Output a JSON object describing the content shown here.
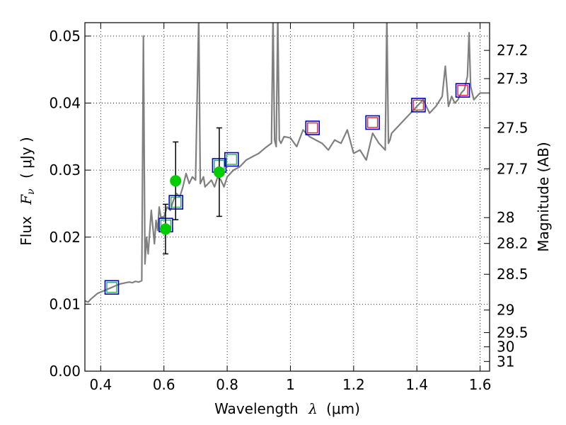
{
  "chart_data": {
    "type": "line",
    "xlabel": "Wavelength",
    "xlabel_symbol": "λ",
    "xlabel_unit": "(μm)",
    "ylabel": "Flux",
    "ylabel_symbol": "F",
    "ylabel_subscript": "ν",
    "ylabel_unit": "( μJy )",
    "y2label": "Magnitude (AB)",
    "xlim": [
      0.35,
      1.63
    ],
    "ylim": [
      0.0,
      0.052
    ],
    "x_ticks": [
      0.4,
      0.6,
      0.8,
      1.0,
      1.2,
      1.4,
      1.6
    ],
    "x_tick_labels": [
      "0.4",
      "0.6",
      "0.8",
      "1",
      "1.2",
      "1.4",
      "1.6"
    ],
    "y_ticks": [
      0.0,
      0.01,
      0.02,
      0.03,
      0.04,
      0.05
    ],
    "y_tick_labels": [
      "0.00",
      "0.01",
      "0.02",
      "0.03",
      "0.04",
      "0.05"
    ],
    "mag_ticks": [
      27.2,
      27.3,
      27.5,
      27.7,
      28,
      28.2,
      28.5,
      29,
      29.5,
      30,
      31
    ],
    "mag_tick_labels": [
      "27.2",
      "27.3",
      "27.5",
      "27.7",
      "28",
      "28.2",
      "28.5",
      "29",
      "29.5",
      "30",
      "31"
    ],
    "grid": true,
    "colors": {
      "spectrum": "#808080",
      "observed": "#00cc00",
      "model_square": "#0000cc",
      "inner_green": "#33aa55",
      "inner_red": "#dd2233",
      "errorbar": "#000000"
    },
    "series": [
      {
        "name": "model spectrum",
        "kind": "line",
        "x": [
          0.35,
          0.36,
          0.37,
          0.38,
          0.39,
          0.4,
          0.41,
          0.42,
          0.43,
          0.44,
          0.45,
          0.46,
          0.47,
          0.48,
          0.49,
          0.5,
          0.51,
          0.52,
          0.53,
          0.535,
          0.54,
          0.545,
          0.55,
          0.56,
          0.57,
          0.575,
          0.58,
          0.585,
          0.59,
          0.6,
          0.61,
          0.62,
          0.63,
          0.64,
          0.65,
          0.66,
          0.67,
          0.68,
          0.69,
          0.7,
          0.71,
          0.715,
          0.72,
          0.725,
          0.73,
          0.74,
          0.75,
          0.76,
          0.77,
          0.78,
          0.79,
          0.8,
          0.82,
          0.84,
          0.86,
          0.88,
          0.9,
          0.92,
          0.94,
          0.945,
          0.95,
          0.955,
          0.96,
          0.965,
          0.97,
          0.98,
          1.0,
          1.02,
          1.04,
          1.06,
          1.08,
          1.1,
          1.12,
          1.14,
          1.16,
          1.18,
          1.2,
          1.22,
          1.24,
          1.26,
          1.28,
          1.3,
          1.305,
          1.31,
          1.315,
          1.32,
          1.34,
          1.36,
          1.38,
          1.4,
          1.42,
          1.44,
          1.46,
          1.48,
          1.49,
          1.5,
          1.51,
          1.52,
          1.53,
          1.54,
          1.55,
          1.56,
          1.565,
          1.57,
          1.58,
          1.6,
          1.63
        ],
        "y": [
          0.0105,
          0.0103,
          0.0108,
          0.0112,
          0.0116,
          0.0118,
          0.012,
          0.0122,
          0.0124,
          0.0126,
          0.0128,
          0.013,
          0.0131,
          0.0132,
          0.0133,
          0.0132,
          0.0134,
          0.0133,
          0.0135,
          0.05,
          0.016,
          0.02,
          0.0175,
          0.024,
          0.019,
          0.0225,
          0.021,
          0.0245,
          0.023,
          0.023,
          0.0245,
          0.024,
          0.0255,
          0.0265,
          0.026,
          0.0275,
          0.0295,
          0.028,
          0.029,
          0.0285,
          0.053,
          0.028,
          0.0285,
          0.029,
          0.0275,
          0.028,
          0.0285,
          0.0275,
          0.029,
          0.0285,
          0.0275,
          0.029,
          0.03,
          0.0305,
          0.0315,
          0.032,
          0.0325,
          0.0333,
          0.034,
          0.053,
          0.0345,
          0.0335,
          0.053,
          0.0345,
          0.034,
          0.035,
          0.0348,
          0.0335,
          0.036,
          0.035,
          0.0345,
          0.034,
          0.033,
          0.0345,
          0.034,
          0.036,
          0.0325,
          0.033,
          0.0315,
          0.0355,
          0.034,
          0.033,
          0.053,
          0.034,
          0.0345,
          0.0355,
          0.0365,
          0.0375,
          0.0385,
          0.0395,
          0.0405,
          0.0385,
          0.0395,
          0.041,
          0.0455,
          0.0395,
          0.041,
          0.04,
          0.0405,
          0.0415,
          0.042,
          0.044,
          0.0505,
          0.0425,
          0.0405,
          0.0415,
          0.0415
        ]
      },
      {
        "name": "observed photometry",
        "kind": "errorbar-points",
        "x": [
          0.605,
          0.637,
          0.775
        ],
        "y": [
          0.0212,
          0.0284,
          0.0297
        ],
        "yerr": [
          0.0037,
          0.0058,
          0.0066
        ]
      },
      {
        "name": "model broadband (green inner)",
        "kind": "squares",
        "x": [
          0.435,
          0.606,
          0.638,
          0.775,
          0.814
        ],
        "y": [
          0.0125,
          0.0218,
          0.0252,
          0.0307,
          0.0316
        ]
      },
      {
        "name": "model broadband (red inner)",
        "kind": "squares",
        "x": [
          1.07,
          1.26,
          1.405,
          1.545
        ],
        "y": [
          0.0363,
          0.0371,
          0.0397,
          0.0419
        ]
      }
    ]
  }
}
